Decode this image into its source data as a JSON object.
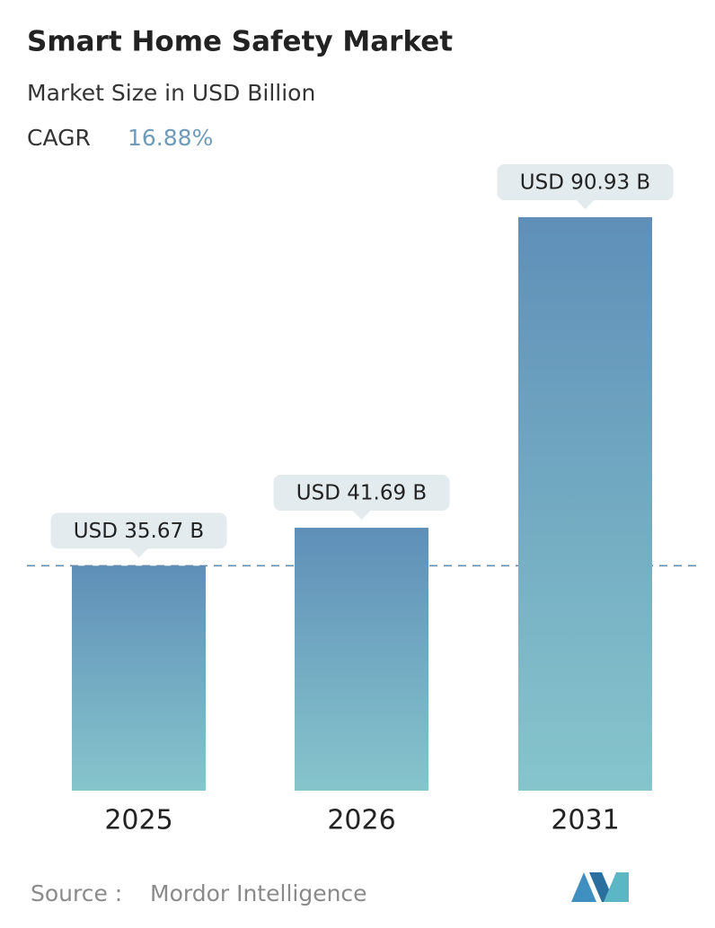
{
  "chart_data": {
    "type": "bar",
    "title": "Smart Home Safety Market",
    "subtitle": "Market Size in USD Billion",
    "cagr_label": "CAGR",
    "cagr": "16.88%",
    "categories": [
      "2025",
      "2026",
      "2031"
    ],
    "values": [
      35.67,
      41.69,
      90.93
    ],
    "value_labels": [
      "USD 35.67 B",
      "USD 41.69 B",
      "USD 90.93 B"
    ],
    "source_label": "Source :",
    "source": "Mordor Intelligence"
  }
}
